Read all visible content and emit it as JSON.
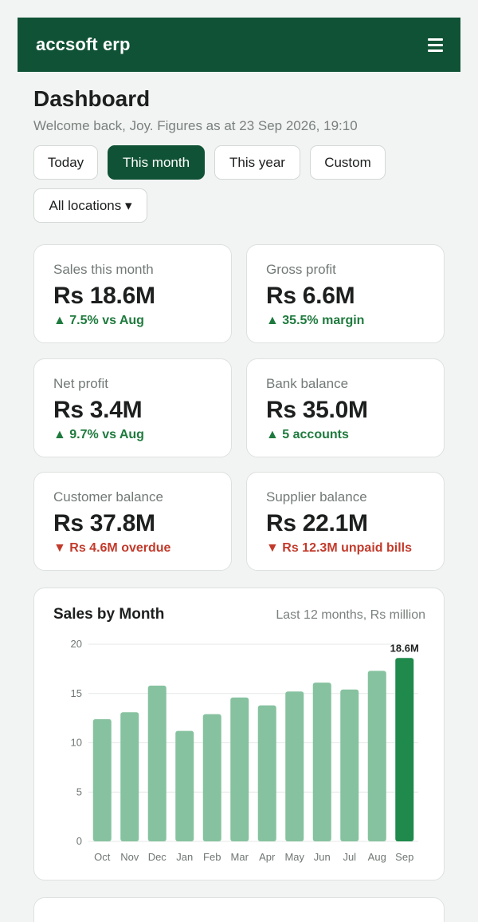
{
  "app": {
    "brand": "accsoft erp",
    "menu_icon": "hamburger-menu-icon"
  },
  "header": {
    "title": "Dashboard",
    "subtitle": "Welcome back, Joy. Figures as at 23 Sep 2026, 19:10"
  },
  "filters": {
    "periods": [
      "Today",
      "This month",
      "This year",
      "Custom"
    ],
    "active_period": "This month",
    "location": "All locations ▾"
  },
  "kpis": [
    {
      "label": "Sales this month",
      "value": "Rs 18.6M",
      "delta": "▲ 7.5% vs Aug",
      "trend": "up"
    },
    {
      "label": "Gross profit",
      "value": "Rs 6.6M",
      "delta": "▲ 35.5% margin",
      "trend": "up"
    },
    {
      "label": "Net profit",
      "value": "Rs 3.4M",
      "delta": "▲ 9.7% vs Aug",
      "trend": "up"
    },
    {
      "label": "Bank balance",
      "value": "Rs 35.0M",
      "delta": "▲ 5 accounts",
      "trend": "up"
    },
    {
      "label": "Customer balance",
      "value": "Rs 37.8M",
      "delta": "▼ Rs 4.6M overdue",
      "trend": "down"
    },
    {
      "label": "Supplier balance",
      "value": "Rs 22.1M",
      "delta": "▼ Rs 12.3M unpaid bills",
      "trend": "down"
    }
  ],
  "colors": {
    "brand": "#105235",
    "up": "#1e7a3d",
    "down": "#c23a2b",
    "bar": "#86c29f",
    "bar_highlight": "#1f8a4c"
  },
  "chart": {
    "title": "Sales by Month",
    "subtitle": "Last 12 months, Rs million"
  },
  "chart_data": {
    "type": "bar",
    "title": "Sales by Month",
    "subtitle": "Last 12 months, Rs million",
    "categories": [
      "Oct",
      "Nov",
      "Dec",
      "Jan",
      "Feb",
      "Mar",
      "Apr",
      "May",
      "Jun",
      "Jul",
      "Aug",
      "Sep"
    ],
    "values": [
      12.4,
      13.1,
      15.8,
      11.2,
      12.9,
      14.6,
      13.8,
      15.2,
      16.1,
      15.4,
      17.3,
      18.6
    ],
    "highlight_index": 11,
    "value_label": "18.6M",
    "ylim": [
      0,
      20
    ],
    "yticks": [
      0,
      5,
      10,
      15,
      20
    ],
    "grid": true
  }
}
